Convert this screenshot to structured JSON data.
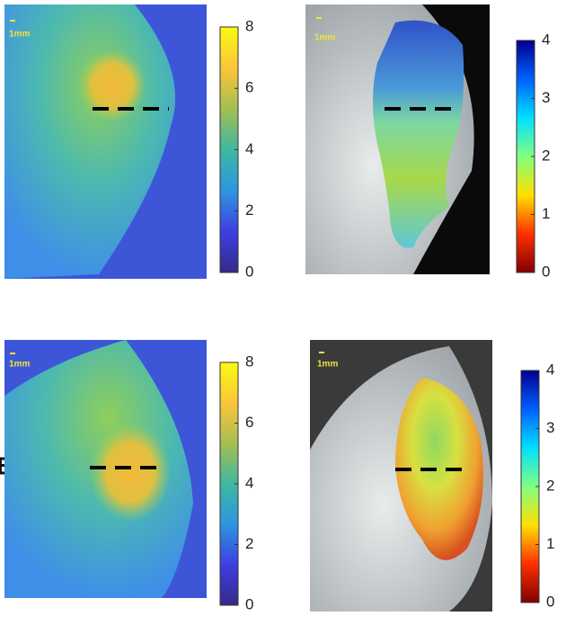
{
  "panel_label": "B",
  "panels": [
    {
      "scale_label": "1mm",
      "colorbar": {
        "colormap": "parula",
        "range": [
          0,
          8
        ],
        "ticks": [
          0,
          2,
          4,
          6,
          8
        ]
      }
    },
    {
      "scale_label": "1mm",
      "colorbar": {
        "colormap": "jet_reversed",
        "range": [
          0,
          4
        ],
        "ticks": [
          0,
          1,
          2,
          3,
          4
        ]
      }
    },
    {
      "scale_label": "1mm",
      "colorbar": {
        "colormap": "parula",
        "range": [
          0,
          8
        ],
        "ticks": [
          0,
          2,
          4,
          6,
          8
        ]
      }
    },
    {
      "scale_label": "1mm",
      "colorbar": {
        "colormap": "jet_reversed",
        "range": [
          0,
          4
        ],
        "ticks": [
          0,
          1,
          2,
          3,
          4
        ]
      }
    }
  ]
}
